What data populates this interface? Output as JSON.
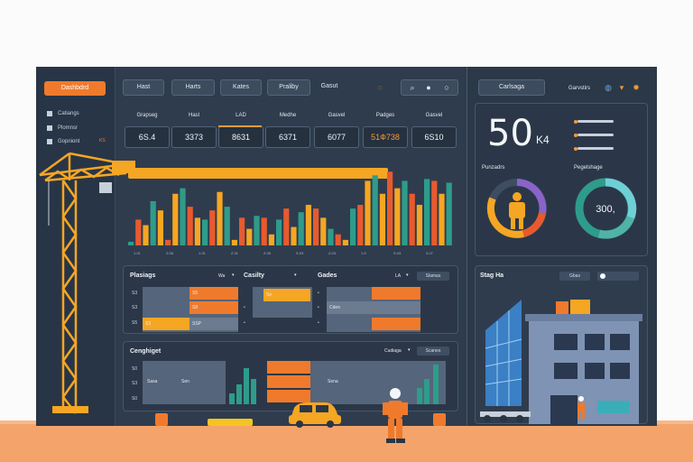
{
  "sidebar": {
    "brand": "Dashbdrd",
    "items": [
      {
        "label": "Catiangs",
        "icon": "grid-icon"
      },
      {
        "label": "Plomnsr",
        "icon": "list-icon"
      },
      {
        "label": "Gopniont",
        "icon": "box-icon"
      }
    ],
    "badge": "KS"
  },
  "toolbar": {
    "buttons": [
      "Hast",
      "Harts",
      "Kates",
      "Praliby"
    ],
    "search_label": "Gasut",
    "right_tab": "Carlsaga",
    "right_link": "Garvstirs"
  },
  "kpis": [
    {
      "label": "Grapseg",
      "value": "6S.4"
    },
    {
      "label": "Hasl",
      "value": "3373"
    },
    {
      "label": "LAD",
      "value": "8631"
    },
    {
      "label": "Medhe",
      "value": "6371"
    },
    {
      "label": "Gasvel",
      "value": "6077"
    },
    {
      "label": "Padges",
      "value": "51Ф738"
    },
    {
      "label": "Gasvel",
      "value": "6S10"
    }
  ],
  "chart_data": {
    "type": "bar",
    "colors": [
      "#e85a2e",
      "#f5a623",
      "#2e9c8a"
    ],
    "series": [
      {
        "name": "",
        "values": [
          4,
          28,
          22,
          48,
          38,
          6,
          56,
          62,
          42,
          30,
          28,
          38,
          58,
          42,
          6,
          30,
          18,
          32,
          30,
          12,
          28,
          40,
          20,
          36,
          44,
          40,
          30,
          18,
          12,
          6,
          40,
          44,
          70,
          76,
          56,
          80,
          62,
          70,
          56,
          44,
          72,
          70,
          56,
          68
        ]
      }
    ],
    "x_tick_labels": [
      "1.01",
      "Z.05",
      "1.01",
      "Z.31",
      "Z.05",
      "S.03",
      "Z.03",
      "1.9",
      "S.03",
      "3.07"
    ]
  },
  "panels": {
    "schedule": {
      "title": "Plasiags",
      "filter": "Wa",
      "section2": "Casilty",
      "section3": "Gades",
      "filter3": "LA",
      "action3": "Slamas",
      "rows": [
        "S3",
        "S3",
        "S5"
      ],
      "cells": [
        "S5",
        "S8",
        "S3",
        "Se",
        "SSP",
        "Cdeo"
      ]
    },
    "progress": {
      "title": "Cenghiget",
      "filter": "Cudiaga",
      "action": "Scanes",
      "rows": [
        "S0",
        "S3",
        "S0"
      ],
      "cells": [
        "Sasa",
        "Sen",
        "Sena"
      ]
    },
    "site": {
      "title": "Stag Ha",
      "toggle": "Gbas"
    }
  },
  "right": {
    "big_value": "50",
    "big_unit": "K4",
    "donut1_label": "Punzadrs",
    "donut2_label": "Pegelshage",
    "donut2_value": "300,"
  }
}
